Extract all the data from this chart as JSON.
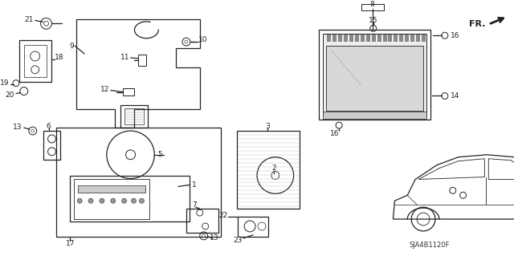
{
  "bg_color": "#ffffff",
  "diagram_id": "SJA4B1120F",
  "fig_width": 6.4,
  "fig_height": 3.19,
  "dpi": 100
}
